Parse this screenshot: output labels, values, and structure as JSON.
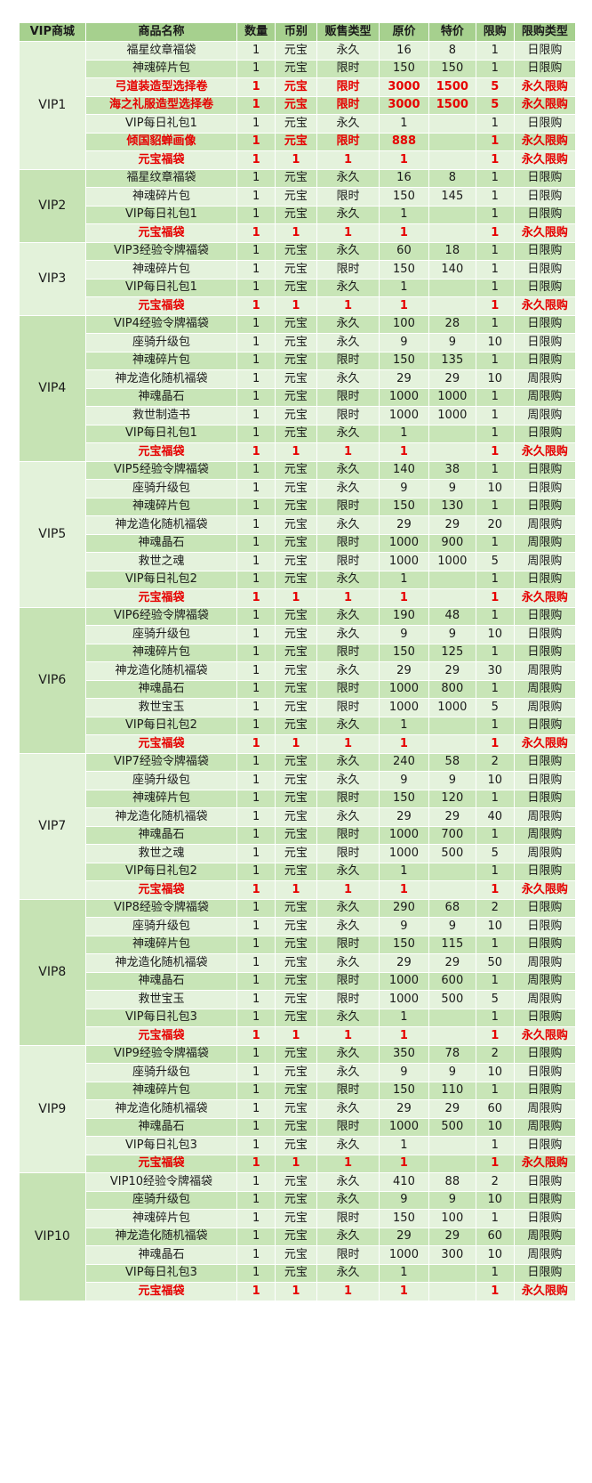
{
  "headers": [
    "VIP商城",
    "商品名称",
    "数量",
    "币别",
    "贩售类型",
    "原价",
    "特价",
    "限购",
    "限购类型"
  ],
  "groups": [
    {
      "vip": "VIP1",
      "rows": [
        {
          "name": "福星纹章福袋",
          "qty": "1",
          "cur": "元宝",
          "type": "永久",
          "orig": "16",
          "sale": "8",
          "limit": "1",
          "ltype": "日限购",
          "red": false
        },
        {
          "name": "神魂碎片包",
          "qty": "1",
          "cur": "元宝",
          "type": "限时",
          "orig": "150",
          "sale": "150",
          "limit": "1",
          "ltype": "日限购",
          "red": false
        },
        {
          "name": "弓道装造型选择卷",
          "qty": "1",
          "cur": "元宝",
          "type": "限时",
          "orig": "3000",
          "sale": "1500",
          "limit": "5",
          "ltype": "永久限购",
          "red": true
        },
        {
          "name": "海之礼服造型选择卷",
          "qty": "1",
          "cur": "元宝",
          "type": "限时",
          "orig": "3000",
          "sale": "1500",
          "limit": "5",
          "ltype": "永久限购",
          "red": true
        },
        {
          "name": "VIP每日礼包1",
          "qty": "1",
          "cur": "元宝",
          "type": "永久",
          "orig": "1",
          "sale": "",
          "limit": "1",
          "ltype": "日限购",
          "red": false
        },
        {
          "name": "倾国貂蝉画像",
          "qty": "1",
          "cur": "元宝",
          "type": "限时",
          "orig": "888",
          "sale": "",
          "limit": "1",
          "ltype": "永久限购",
          "red": true
        },
        {
          "name": "元宝福袋",
          "qty": "1",
          "cur": "1",
          "type": "1",
          "orig": "1",
          "sale": "",
          "limit": "1",
          "ltype": "永久限购",
          "red": true
        }
      ]
    },
    {
      "vip": "VIP2",
      "rows": [
        {
          "name": "福星纹章福袋",
          "qty": "1",
          "cur": "元宝",
          "type": "永久",
          "orig": "16",
          "sale": "8",
          "limit": "1",
          "ltype": "日限购",
          "red": false
        },
        {
          "name": "神魂碎片包",
          "qty": "1",
          "cur": "元宝",
          "type": "限时",
          "orig": "150",
          "sale": "145",
          "limit": "1",
          "ltype": "日限购",
          "red": false
        },
        {
          "name": "VIP每日礼包1",
          "qty": "1",
          "cur": "元宝",
          "type": "永久",
          "orig": "1",
          "sale": "",
          "limit": "1",
          "ltype": "日限购",
          "red": false
        },
        {
          "name": "元宝福袋",
          "qty": "1",
          "cur": "1",
          "type": "1",
          "orig": "1",
          "sale": "",
          "limit": "1",
          "ltype": "永久限购",
          "red": true
        }
      ]
    },
    {
      "vip": "VIP3",
      "rows": [
        {
          "name": "VIP3经验令牌福袋",
          "qty": "1",
          "cur": "元宝",
          "type": "永久",
          "orig": "60",
          "sale": "18",
          "limit": "1",
          "ltype": "日限购",
          "red": false
        },
        {
          "name": "神魂碎片包",
          "qty": "1",
          "cur": "元宝",
          "type": "限时",
          "orig": "150",
          "sale": "140",
          "limit": "1",
          "ltype": "日限购",
          "red": false
        },
        {
          "name": "VIP每日礼包1",
          "qty": "1",
          "cur": "元宝",
          "type": "永久",
          "orig": "1",
          "sale": "",
          "limit": "1",
          "ltype": "日限购",
          "red": false
        },
        {
          "name": "元宝福袋",
          "qty": "1",
          "cur": "1",
          "type": "1",
          "orig": "1",
          "sale": "",
          "limit": "1",
          "ltype": "永久限购",
          "red": true
        }
      ]
    },
    {
      "vip": "VIP4",
      "rows": [
        {
          "name": "VIP4经验令牌福袋",
          "qty": "1",
          "cur": "元宝",
          "type": "永久",
          "orig": "100",
          "sale": "28",
          "limit": "1",
          "ltype": "日限购",
          "red": false
        },
        {
          "name": "座骑升级包",
          "qty": "1",
          "cur": "元宝",
          "type": "永久",
          "orig": "9",
          "sale": "9",
          "limit": "10",
          "ltype": "日限购",
          "red": false
        },
        {
          "name": "神魂碎片包",
          "qty": "1",
          "cur": "元宝",
          "type": "限时",
          "orig": "150",
          "sale": "135",
          "limit": "1",
          "ltype": "日限购",
          "red": false
        },
        {
          "name": "神龙造化随机福袋",
          "qty": "1",
          "cur": "元宝",
          "type": "永久",
          "orig": "29",
          "sale": "29",
          "limit": "10",
          "ltype": "周限购",
          "red": false
        },
        {
          "name": "神魂晶石",
          "qty": "1",
          "cur": "元宝",
          "type": "限时",
          "orig": "1000",
          "sale": "1000",
          "limit": "1",
          "ltype": "周限购",
          "red": false
        },
        {
          "name": "救世制造书",
          "qty": "1",
          "cur": "元宝",
          "type": "限时",
          "orig": "1000",
          "sale": "1000",
          "limit": "1",
          "ltype": "周限购",
          "red": false
        },
        {
          "name": "VIP每日礼包1",
          "qty": "1",
          "cur": "元宝",
          "type": "永久",
          "orig": "1",
          "sale": "",
          "limit": "1",
          "ltype": "日限购",
          "red": false
        },
        {
          "name": "元宝福袋",
          "qty": "1",
          "cur": "1",
          "type": "1",
          "orig": "1",
          "sale": "",
          "limit": "1",
          "ltype": "永久限购",
          "red": true
        }
      ]
    },
    {
      "vip": "VIP5",
      "rows": [
        {
          "name": "VIP5经验令牌福袋",
          "qty": "1",
          "cur": "元宝",
          "type": "永久",
          "orig": "140",
          "sale": "38",
          "limit": "1",
          "ltype": "日限购",
          "red": false
        },
        {
          "name": "座骑升级包",
          "qty": "1",
          "cur": "元宝",
          "type": "永久",
          "orig": "9",
          "sale": "9",
          "limit": "10",
          "ltype": "日限购",
          "red": false
        },
        {
          "name": "神魂碎片包",
          "qty": "1",
          "cur": "元宝",
          "type": "限时",
          "orig": "150",
          "sale": "130",
          "limit": "1",
          "ltype": "日限购",
          "red": false
        },
        {
          "name": "神龙造化随机福袋",
          "qty": "1",
          "cur": "元宝",
          "type": "永久",
          "orig": "29",
          "sale": "29",
          "limit": "20",
          "ltype": "周限购",
          "red": false
        },
        {
          "name": "神魂晶石",
          "qty": "1",
          "cur": "元宝",
          "type": "限时",
          "orig": "1000",
          "sale": "900",
          "limit": "1",
          "ltype": "周限购",
          "red": false
        },
        {
          "name": "救世之魂",
          "qty": "1",
          "cur": "元宝",
          "type": "限时",
          "orig": "1000",
          "sale": "1000",
          "limit": "5",
          "ltype": "周限购",
          "red": false
        },
        {
          "name": "VIP每日礼包2",
          "qty": "1",
          "cur": "元宝",
          "type": "永久",
          "orig": "1",
          "sale": "",
          "limit": "1",
          "ltype": "日限购",
          "red": false
        },
        {
          "name": "元宝福袋",
          "qty": "1",
          "cur": "1",
          "type": "1",
          "orig": "1",
          "sale": "",
          "limit": "1",
          "ltype": "永久限购",
          "red": true
        }
      ]
    },
    {
      "vip": "VIP6",
      "rows": [
        {
          "name": "VIP6经验令牌福袋",
          "qty": "1",
          "cur": "元宝",
          "type": "永久",
          "orig": "190",
          "sale": "48",
          "limit": "1",
          "ltype": "日限购",
          "red": false
        },
        {
          "name": "座骑升级包",
          "qty": "1",
          "cur": "元宝",
          "type": "永久",
          "orig": "9",
          "sale": "9",
          "limit": "10",
          "ltype": "日限购",
          "red": false
        },
        {
          "name": "神魂碎片包",
          "qty": "1",
          "cur": "元宝",
          "type": "限时",
          "orig": "150",
          "sale": "125",
          "limit": "1",
          "ltype": "日限购",
          "red": false
        },
        {
          "name": "神龙造化随机福袋",
          "qty": "1",
          "cur": "元宝",
          "type": "永久",
          "orig": "29",
          "sale": "29",
          "limit": "30",
          "ltype": "周限购",
          "red": false
        },
        {
          "name": "神魂晶石",
          "qty": "1",
          "cur": "元宝",
          "type": "限时",
          "orig": "1000",
          "sale": "800",
          "limit": "1",
          "ltype": "周限购",
          "red": false
        },
        {
          "name": "救世宝玉",
          "qty": "1",
          "cur": "元宝",
          "type": "限时",
          "orig": "1000",
          "sale": "1000",
          "limit": "5",
          "ltype": "周限购",
          "red": false
        },
        {
          "name": "VIP每日礼包2",
          "qty": "1",
          "cur": "元宝",
          "type": "永久",
          "orig": "1",
          "sale": "",
          "limit": "1",
          "ltype": "日限购",
          "red": false
        },
        {
          "name": "元宝福袋",
          "qty": "1",
          "cur": "1",
          "type": "1",
          "orig": "1",
          "sale": "",
          "limit": "1",
          "ltype": "永久限购",
          "red": true
        }
      ]
    },
    {
      "vip": "VIP7",
      "rows": [
        {
          "name": "VIP7经验令牌福袋",
          "qty": "1",
          "cur": "元宝",
          "type": "永久",
          "orig": "240",
          "sale": "58",
          "limit": "2",
          "ltype": "日限购",
          "red": false
        },
        {
          "name": "座骑升级包",
          "qty": "1",
          "cur": "元宝",
          "type": "永久",
          "orig": "9",
          "sale": "9",
          "limit": "10",
          "ltype": "日限购",
          "red": false
        },
        {
          "name": "神魂碎片包",
          "qty": "1",
          "cur": "元宝",
          "type": "限时",
          "orig": "150",
          "sale": "120",
          "limit": "1",
          "ltype": "日限购",
          "red": false
        },
        {
          "name": "神龙造化随机福袋",
          "qty": "1",
          "cur": "元宝",
          "type": "永久",
          "orig": "29",
          "sale": "29",
          "limit": "40",
          "ltype": "周限购",
          "red": false
        },
        {
          "name": "神魂晶石",
          "qty": "1",
          "cur": "元宝",
          "type": "限时",
          "orig": "1000",
          "sale": "700",
          "limit": "1",
          "ltype": "周限购",
          "red": false
        },
        {
          "name": "救世之魂",
          "qty": "1",
          "cur": "元宝",
          "type": "限时",
          "orig": "1000",
          "sale": "500",
          "limit": "5",
          "ltype": "周限购",
          "red": false
        },
        {
          "name": "VIP每日礼包2",
          "qty": "1",
          "cur": "元宝",
          "type": "永久",
          "orig": "1",
          "sale": "",
          "limit": "1",
          "ltype": "日限购",
          "red": false
        },
        {
          "name": "元宝福袋",
          "qty": "1",
          "cur": "1",
          "type": "1",
          "orig": "1",
          "sale": "",
          "limit": "1",
          "ltype": "永久限购",
          "red": true
        }
      ]
    },
    {
      "vip": "VIP8",
      "rows": [
        {
          "name": "VIP8经验令牌福袋",
          "qty": "1",
          "cur": "元宝",
          "type": "永久",
          "orig": "290",
          "sale": "68",
          "limit": "2",
          "ltype": "日限购",
          "red": false
        },
        {
          "name": "座骑升级包",
          "qty": "1",
          "cur": "元宝",
          "type": "永久",
          "orig": "9",
          "sale": "9",
          "limit": "10",
          "ltype": "日限购",
          "red": false
        },
        {
          "name": "神魂碎片包",
          "qty": "1",
          "cur": "元宝",
          "type": "限时",
          "orig": "150",
          "sale": "115",
          "limit": "1",
          "ltype": "日限购",
          "red": false
        },
        {
          "name": "神龙造化随机福袋",
          "qty": "1",
          "cur": "元宝",
          "type": "永久",
          "orig": "29",
          "sale": "29",
          "limit": "50",
          "ltype": "周限购",
          "red": false
        },
        {
          "name": "神魂晶石",
          "qty": "1",
          "cur": "元宝",
          "type": "限时",
          "orig": "1000",
          "sale": "600",
          "limit": "1",
          "ltype": "周限购",
          "red": false
        },
        {
          "name": "救世宝玉",
          "qty": "1",
          "cur": "元宝",
          "type": "限时",
          "orig": "1000",
          "sale": "500",
          "limit": "5",
          "ltype": "周限购",
          "red": false
        },
        {
          "name": "VIP每日礼包3",
          "qty": "1",
          "cur": "元宝",
          "type": "永久",
          "orig": "1",
          "sale": "",
          "limit": "1",
          "ltype": "日限购",
          "red": false
        },
        {
          "name": "元宝福袋",
          "qty": "1",
          "cur": "1",
          "type": "1",
          "orig": "1",
          "sale": "",
          "limit": "1",
          "ltype": "永久限购",
          "red": true
        }
      ]
    },
    {
      "vip": "VIP9",
      "rows": [
        {
          "name": "VIP9经验令牌福袋",
          "qty": "1",
          "cur": "元宝",
          "type": "永久",
          "orig": "350",
          "sale": "78",
          "limit": "2",
          "ltype": "日限购",
          "red": false
        },
        {
          "name": "座骑升级包",
          "qty": "1",
          "cur": "元宝",
          "type": "永久",
          "orig": "9",
          "sale": "9",
          "limit": "10",
          "ltype": "日限购",
          "red": false
        },
        {
          "name": "神魂碎片包",
          "qty": "1",
          "cur": "元宝",
          "type": "限时",
          "orig": "150",
          "sale": "110",
          "limit": "1",
          "ltype": "日限购",
          "red": false
        },
        {
          "name": "神龙造化随机福袋",
          "qty": "1",
          "cur": "元宝",
          "type": "永久",
          "orig": "29",
          "sale": "29",
          "limit": "60",
          "ltype": "周限购",
          "red": false
        },
        {
          "name": "神魂晶石",
          "qty": "1",
          "cur": "元宝",
          "type": "限时",
          "orig": "1000",
          "sale": "500",
          "limit": "10",
          "ltype": "周限购",
          "red": false
        },
        {
          "name": "VIP每日礼包3",
          "qty": "1",
          "cur": "元宝",
          "type": "永久",
          "orig": "1",
          "sale": "",
          "limit": "1",
          "ltype": "日限购",
          "red": false
        },
        {
          "name": "元宝福袋",
          "qty": "1",
          "cur": "1",
          "type": "1",
          "orig": "1",
          "sale": "",
          "limit": "1",
          "ltype": "永久限购",
          "red": true
        }
      ]
    },
    {
      "vip": "VIP10",
      "rows": [
        {
          "name": "VIP10经验令牌福袋",
          "qty": "1",
          "cur": "元宝",
          "type": "永久",
          "orig": "410",
          "sale": "88",
          "limit": "2",
          "ltype": "日限购",
          "red": false
        },
        {
          "name": "座骑升级包",
          "qty": "1",
          "cur": "元宝",
          "type": "永久",
          "orig": "9",
          "sale": "9",
          "limit": "10",
          "ltype": "日限购",
          "red": false
        },
        {
          "name": "神魂碎片包",
          "qty": "1",
          "cur": "元宝",
          "type": "限时",
          "orig": "150",
          "sale": "100",
          "limit": "1",
          "ltype": "日限购",
          "red": false
        },
        {
          "name": "神龙造化随机福袋",
          "qty": "1",
          "cur": "元宝",
          "type": "永久",
          "orig": "29",
          "sale": "29",
          "limit": "60",
          "ltype": "周限购",
          "red": false
        },
        {
          "name": "神魂晶石",
          "qty": "1",
          "cur": "元宝",
          "type": "限时",
          "orig": "1000",
          "sale": "300",
          "limit": "10",
          "ltype": "周限购",
          "red": false
        },
        {
          "name": "VIP每日礼包3",
          "qty": "1",
          "cur": "元宝",
          "type": "永久",
          "orig": "1",
          "sale": "",
          "limit": "1",
          "ltype": "日限购",
          "red": false
        },
        {
          "name": "元宝福袋",
          "qty": "1",
          "cur": "1",
          "type": "1",
          "orig": "1",
          "sale": "",
          "limit": "1",
          "ltype": "永久限购",
          "red": true
        }
      ]
    }
  ]
}
